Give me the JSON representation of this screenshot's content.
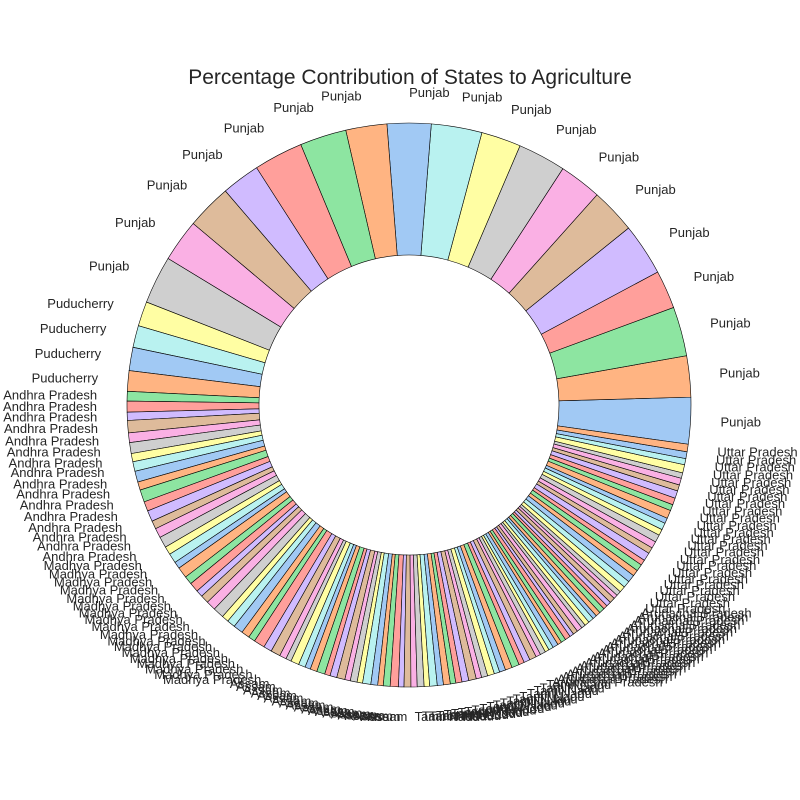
{
  "chart_data": {
    "type": "pie",
    "style": "donut",
    "title": "Percentage Contribution of States to Agriculture",
    "palette": [
      "#a1c9f4",
      "#ffb482",
      "#8de5a1",
      "#ff9f9b",
      "#d0bbff",
      "#debb9b",
      "#fab0e4",
      "#cfcfcf",
      "#fffea3",
      "#b9f2f0"
    ],
    "legible_labels": [
      "Punjab",
      "Puducherry",
      "Andhra Pradesh",
      "Madhya Pradesh",
      "Assam",
      "Tamil Nadu",
      "Arunachal Pradesh",
      "Uttar Pradesh"
    ],
    "slices": [
      {
        "label": "Punjab",
        "value": 0.34
      },
      {
        "label": "Punjab",
        "value": 0.3
      },
      {
        "label": "Punjab",
        "value": 0.36
      },
      {
        "label": "Punjab",
        "value": 0.28
      },
      {
        "label": "Punjab",
        "value": 0.38
      },
      {
        "label": "Punjab",
        "value": 0.33
      },
      {
        "label": "Punjab",
        "value": 0.31
      },
      {
        "label": "Punjab",
        "value": 0.35
      },
      {
        "label": "Punjab",
        "value": 0.29
      },
      {
        "label": "Punjab",
        "value": 0.37
      },
      {
        "label": "Punjab",
        "value": 0.32
      },
      {
        "label": "Punjab",
        "value": 0.3
      },
      {
        "label": "Punjab",
        "value": 0.34
      },
      {
        "label": "Punjab",
        "value": 0.36
      },
      {
        "label": "Punjab",
        "value": 0.28
      },
      {
        "label": "Punjab",
        "value": 0.33
      },
      {
        "label": "Punjab",
        "value": 0.31
      },
      {
        "label": "Punjab",
        "value": 0.35
      },
      {
        "label": "Puducherry",
        "value": 0.18
      },
      {
        "label": "Puducherry",
        "value": 0.16
      },
      {
        "label": "Puducherry",
        "value": 0.17
      },
      {
        "label": "Puducherry",
        "value": 0.15
      },
      {
        "label": "Andhra Pradesh",
        "value": 0.07
      },
      {
        "label": "Andhra Pradesh",
        "value": 0.08
      },
      {
        "label": "Andhra Pradesh",
        "value": 0.06
      },
      {
        "label": "Andhra Pradesh",
        "value": 0.09
      },
      {
        "label": "Andhra Pradesh",
        "value": 0.07
      },
      {
        "label": "Andhra Pradesh",
        "value": 0.08
      },
      {
        "label": "Andhra Pradesh",
        "value": 0.06
      },
      {
        "label": "Andhra Pradesh",
        "value": 0.07
      },
      {
        "label": "Andhra Pradesh",
        "value": 0.08
      },
      {
        "label": "Andhra Pradesh",
        "value": 0.06
      },
      {
        "label": "Andhra Pradesh",
        "value": 0.09
      },
      {
        "label": "Andhra Pradesh",
        "value": 0.07
      },
      {
        "label": "Andhra Pradesh",
        "value": 0.08
      },
      {
        "label": "Andhra Pradesh",
        "value": 0.06
      },
      {
        "label": "Andhra Pradesh",
        "value": 0.07
      },
      {
        "label": "Andhra Pradesh",
        "value": 0.08
      },
      {
        "label": "Madhya Pradesh",
        "value": 0.06
      },
      {
        "label": "Madhya Pradesh",
        "value": 0.07
      },
      {
        "label": "Madhya Pradesh",
        "value": 0.05
      },
      {
        "label": "Madhya Pradesh",
        "value": 0.08
      },
      {
        "label": "Madhya Pradesh",
        "value": 0.06
      },
      {
        "label": "Madhya Pradesh",
        "value": 0.07
      },
      {
        "label": "Madhya Pradesh",
        "value": 0.05
      },
      {
        "label": "Madhya Pradesh",
        "value": 0.06
      },
      {
        "label": "Madhya Pradesh",
        "value": 0.07
      },
      {
        "label": "Madhya Pradesh",
        "value": 0.08
      },
      {
        "label": "Madhya Pradesh",
        "value": 0.05
      },
      {
        "label": "Madhya Pradesh",
        "value": 0.06
      },
      {
        "label": "Madhya Pradesh",
        "value": 0.07
      },
      {
        "label": "Madhya Pradesh",
        "value": 0.06
      },
      {
        "label": "Madhya Pradesh",
        "value": 0.05
      },
      {
        "label": "Madhya Pradesh",
        "value": 0.08
      },
      {
        "label": "Madhya Pradesh",
        "value": 0.06
      },
      {
        "label": "Madhya Pradesh",
        "value": 0.07
      },
      {
        "label": "Assam",
        "value": 0.05
      },
      {
        "label": "Assam",
        "value": 0.04
      },
      {
        "label": "Assam",
        "value": 0.06
      },
      {
        "label": "Assam",
        "value": 0.05
      },
      {
        "label": "Assam",
        "value": 0.04
      },
      {
        "label": "Assam",
        "value": 0.05
      },
      {
        "label": "Assam",
        "value": 0.06
      },
      {
        "label": "Assam",
        "value": 0.04
      },
      {
        "label": "Assam",
        "value": 0.05
      },
      {
        "label": "Assam",
        "value": 0.06
      },
      {
        "label": "Assam",
        "value": 0.04
      },
      {
        "label": "Assam",
        "value": 0.05
      },
      {
        "label": "Assam",
        "value": 0.04
      },
      {
        "label": "Assam",
        "value": 0.06
      },
      {
        "label": "Assam",
        "value": 0.05
      },
      {
        "label": "Assam",
        "value": 0.04
      },
      {
        "label": "Assam",
        "value": 0.05
      },
      {
        "label": "Assam",
        "value": 0.06
      },
      {
        "label": "Assam",
        "value": 0.04
      },
      {
        "label": "Assam",
        "value": 0.05
      },
      {
        "label": "Tamil Nadu",
        "value": 0.045
      },
      {
        "label": "Tamil Nadu",
        "value": 0.05
      },
      {
        "label": "Tamil Nadu",
        "value": 0.04
      },
      {
        "label": "Tamil Nadu",
        "value": 0.055
      },
      {
        "label": "Tamil Nadu",
        "value": 0.045
      },
      {
        "label": "Tamil Nadu",
        "value": 0.05
      },
      {
        "label": "Tamil Nadu",
        "value": 0.04
      },
      {
        "label": "Tamil Nadu",
        "value": 0.045
      },
      {
        "label": "Tamil Nadu",
        "value": 0.05
      },
      {
        "label": "Tamil Nadu",
        "value": 0.055
      },
      {
        "label": "Tamil Nadu",
        "value": 0.04
      },
      {
        "label": "Tamil Nadu",
        "value": 0.045
      },
      {
        "label": "Tamil Nadu",
        "value": 0.05
      },
      {
        "label": "Tamil Nadu",
        "value": 0.04
      },
      {
        "label": "Tamil Nadu",
        "value": 0.045
      },
      {
        "label": "Tamil Nadu",
        "value": 0.05
      },
      {
        "label": "Tamil Nadu",
        "value": 0.055
      },
      {
        "label": "Tamil Nadu",
        "value": 0.04
      },
      {
        "label": "Tamil Nadu",
        "value": 0.045
      },
      {
        "label": "Tamil Nadu",
        "value": 0.05
      },
      {
        "label": "Arunachal Pradesh",
        "value": 0.035
      },
      {
        "label": "Arunachal Pradesh",
        "value": 0.04
      },
      {
        "label": "Arunachal Pradesh",
        "value": 0.03
      },
      {
        "label": "Arunachal Pradesh",
        "value": 0.035
      },
      {
        "label": "Arunachal Pradesh",
        "value": 0.04
      },
      {
        "label": "Arunachal Pradesh",
        "value": 0.03
      },
      {
        "label": "Arunachal Pradesh",
        "value": 0.035
      },
      {
        "label": "Arunachal Pradesh",
        "value": 0.04
      },
      {
        "label": "Arunachal Pradesh",
        "value": 0.03
      },
      {
        "label": "Arunachal Pradesh",
        "value": 0.035
      },
      {
        "label": "Arunachal Pradesh",
        "value": 0.04
      },
      {
        "label": "Arunachal Pradesh",
        "value": 0.03
      },
      {
        "label": "Arunachal Pradesh",
        "value": 0.035
      },
      {
        "label": "Arunachal Pradesh",
        "value": 0.04
      },
      {
        "label": "Arunachal Pradesh",
        "value": 0.03
      },
      {
        "label": "Arunachal Pradesh",
        "value": 0.035
      },
      {
        "label": "Arunachal Pradesh",
        "value": 0.04
      },
      {
        "label": "Arunachal Pradesh",
        "value": 0.03
      },
      {
        "label": "Arunachal Pradesh",
        "value": 0.035
      },
      {
        "label": "Arunachal Pradesh",
        "value": 0.04
      },
      {
        "label": "Arunachal Pradesh",
        "value": 0.03
      },
      {
        "label": "Arunachal Pradesh",
        "value": 0.035
      },
      {
        "label": "Uttar Pradesh",
        "value": 0.045
      },
      {
        "label": "Uttar Pradesh",
        "value": 0.05
      },
      {
        "label": "Uttar Pradesh",
        "value": 0.055
      },
      {
        "label": "Uttar Pradesh",
        "value": 0.045
      },
      {
        "label": "Uttar Pradesh",
        "value": 0.05
      },
      {
        "label": "Uttar Pradesh",
        "value": 0.04
      },
      {
        "label": "Uttar Pradesh",
        "value": 0.06
      },
      {
        "label": "Uttar Pradesh",
        "value": 0.045
      },
      {
        "label": "Uttar Pradesh",
        "value": 0.05
      },
      {
        "label": "Uttar Pradesh",
        "value": 0.055
      },
      {
        "label": "Uttar Pradesh",
        "value": 0.045
      },
      {
        "label": "Uttar Pradesh",
        "value": 0.05
      },
      {
        "label": "Uttar Pradesh",
        "value": 0.04
      },
      {
        "label": "Uttar Pradesh",
        "value": 0.06
      },
      {
        "label": "Uttar Pradesh",
        "value": 0.045
      },
      {
        "label": "Uttar Pradesh",
        "value": 0.05
      },
      {
        "label": "Uttar Pradesh",
        "value": 0.055
      },
      {
        "label": "Uttar Pradesh",
        "value": 0.045
      },
      {
        "label": "Uttar Pradesh",
        "value": 0.05
      },
      {
        "label": "Uttar Pradesh",
        "value": 0.04
      },
      {
        "label": "Uttar Pradesh",
        "value": 0.06
      },
      {
        "label": "Uttar Pradesh",
        "value": 0.045
      },
      {
        "label": "Uttar Pradesh",
        "value": 0.05
      },
      {
        "label": "Uttar Pradesh",
        "value": 0.055
      }
    ]
  }
}
